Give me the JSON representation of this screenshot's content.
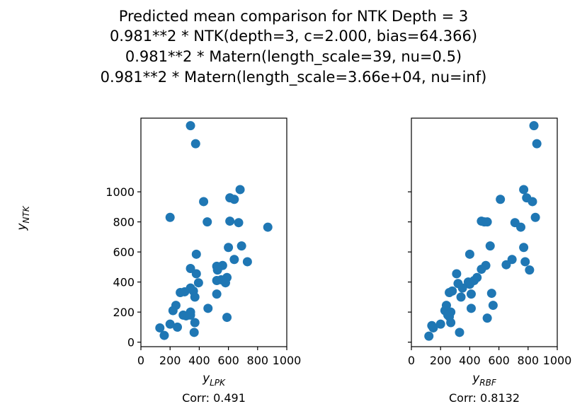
{
  "title_lines": [
    "Predicted mean comparison for NTK Depth = 3",
    "0.981**2 * NTK(depth=3, c=2.000, bias=64.366)",
    "0.981**2 * Matern(length_scale=39, nu=0.5)",
    "0.981**2 * Matern(length_scale=3.66e+04, nu=inf)"
  ],
  "chart_data": [
    {
      "type": "scatter",
      "xlabel": "y_LPK",
      "ylabel": "y_NTK",
      "xlim": [
        0,
        1000
      ],
      "ylim": [
        -30,
        1490
      ],
      "xticks": [
        "0",
        "200",
        "400",
        "600",
        "800",
        "1000"
      ],
      "yticks": [
        "0",
        "200",
        "400",
        "600",
        "800",
        "1000"
      ],
      "annotation": "Corr: 0.491",
      "color": "#1f77b4",
      "points": [
        [
          340,
          1440
        ],
        [
          375,
          1320
        ],
        [
          200,
          830
        ],
        [
          430,
          935
        ],
        [
          455,
          800
        ],
        [
          680,
          1015
        ],
        [
          610,
          960
        ],
        [
          640,
          950
        ],
        [
          610,
          805
        ],
        [
          670,
          795
        ],
        [
          870,
          765
        ],
        [
          380,
          585
        ],
        [
          600,
          630
        ],
        [
          690,
          640
        ],
        [
          640,
          550
        ],
        [
          730,
          535
        ],
        [
          560,
          510
        ],
        [
          520,
          505
        ],
        [
          525,
          480
        ],
        [
          340,
          490
        ],
        [
          380,
          455
        ],
        [
          590,
          430
        ],
        [
          550,
          415
        ],
        [
          520,
          410
        ],
        [
          580,
          395
        ],
        [
          395,
          395
        ],
        [
          300,
          335
        ],
        [
          340,
          360
        ],
        [
          360,
          340
        ],
        [
          270,
          330
        ],
        [
          370,
          300
        ],
        [
          520,
          320
        ],
        [
          240,
          245
        ],
        [
          220,
          210
        ],
        [
          290,
          180
        ],
        [
          340,
          200
        ],
        [
          310,
          175
        ],
        [
          340,
          180
        ],
        [
          460,
          225
        ],
        [
          590,
          165
        ],
        [
          370,
          130
        ],
        [
          200,
          120
        ],
        [
          250,
          100
        ],
        [
          130,
          95
        ],
        [
          160,
          45
        ],
        [
          365,
          65
        ]
      ]
    },
    {
      "type": "scatter",
      "xlabel": "y_RBF",
      "ylabel": "",
      "xlim": [
        0,
        1000
      ],
      "ylim": [
        -30,
        1490
      ],
      "xticks": [
        "0",
        "200",
        "400",
        "600",
        "800",
        "1000"
      ],
      "yticks": [],
      "annotation": "Corr: 0.8132",
      "color": "#1f77b4",
      "points": [
        [
          840,
          1440
        ],
        [
          860,
          1320
        ],
        [
          770,
          1015
        ],
        [
          790,
          960
        ],
        [
          830,
          935
        ],
        [
          610,
          950
        ],
        [
          850,
          830
        ],
        [
          480,
          805
        ],
        [
          500,
          800
        ],
        [
          520,
          800
        ],
        [
          710,
          795
        ],
        [
          750,
          765
        ],
        [
          540,
          640
        ],
        [
          770,
          630
        ],
        [
          400,
          585
        ],
        [
          690,
          550
        ],
        [
          780,
          535
        ],
        [
          650,
          515
        ],
        [
          510,
          510
        ],
        [
          480,
          485
        ],
        [
          810,
          480
        ],
        [
          310,
          455
        ],
        [
          450,
          430
        ],
        [
          430,
          410
        ],
        [
          390,
          400
        ],
        [
          400,
          385
        ],
        [
          320,
          390
        ],
        [
          350,
          360
        ],
        [
          260,
          330
        ],
        [
          280,
          340
        ],
        [
          550,
          325
        ],
        [
          410,
          320
        ],
        [
          340,
          300
        ],
        [
          560,
          245
        ],
        [
          410,
          225
        ],
        [
          240,
          245
        ],
        [
          230,
          210
        ],
        [
          270,
          200
        ],
        [
          260,
          170
        ],
        [
          250,
          180
        ],
        [
          520,
          160
        ],
        [
          270,
          130
        ],
        [
          140,
          110
        ],
        [
          150,
          95
        ],
        [
          200,
          120
        ],
        [
          330,
          65
        ],
        [
          120,
          40
        ]
      ]
    }
  ]
}
